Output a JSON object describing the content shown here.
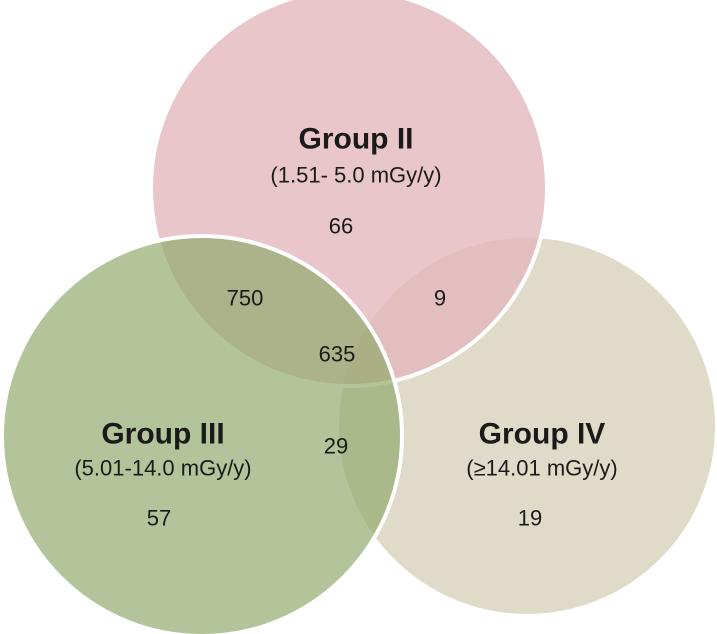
{
  "groups": {
    "ii": {
      "name": "Group II",
      "range": "(1.51- 5.0 mGy/y)",
      "only": "66",
      "color": "#e8c4c6"
    },
    "iii": {
      "name": "Group III",
      "range": "(5.01-14.0 mGy/y)",
      "only": "57",
      "color": "#a9bf87"
    },
    "iv": {
      "name": "Group IV",
      "range": "(≥14.01 mGy/y)",
      "only": "19",
      "color": "#ddd8c4"
    }
  },
  "intersections": {
    "ii_iii": "750",
    "ii_iv": "9",
    "iii_iv": "29",
    "all": "635"
  }
}
